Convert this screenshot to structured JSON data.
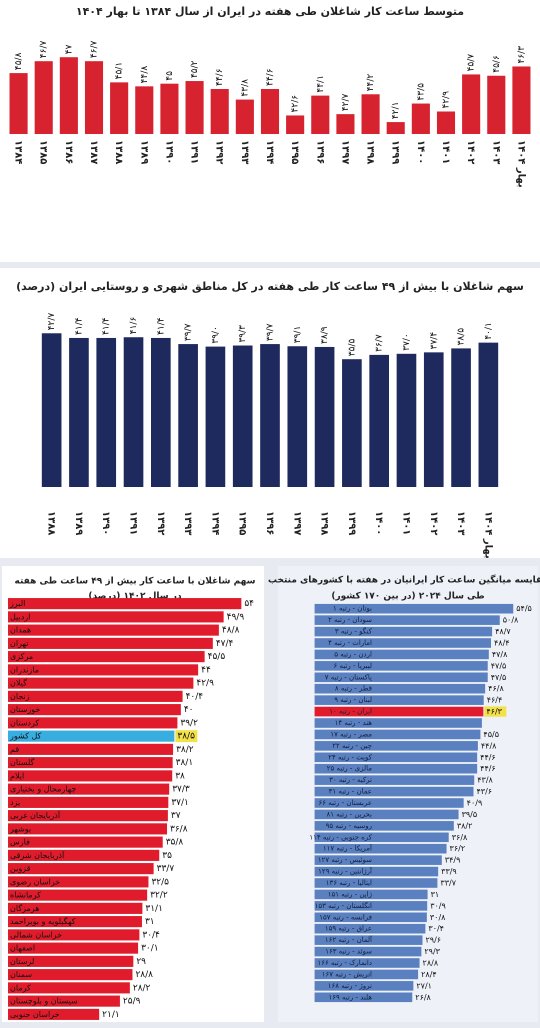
{
  "chart_data": [
    {
      "type": "bar",
      "orientation": "vertical",
      "title": "متوسط ساعت کار شاغلان طی هفته در ایران از سال ۱۳۸۴ تا بهار ۱۴۰۴",
      "categories": [
        "۱۳۸۴",
        "۱۳۸۵",
        "۱۳۸۶",
        "۱۳۸۷",
        "۱۳۸۸",
        "۱۳۸۹",
        "۱۳۹۰",
        "۱۳۹۱",
        "۱۳۹۲",
        "۱۳۹۳",
        "۱۳۹۴",
        "۱۳۹۵",
        "۱۳۹۶",
        "۱۳۹۷",
        "۱۳۹۸",
        "۱۳۹۹",
        "۱۴۰۰",
        "۱۴۰۱",
        "۱۴۰۲",
        "۱۴۰۳",
        "بهار ۱۴۰۴"
      ],
      "values": [
        45.8,
        46.7,
        47,
        46.7,
        45.1,
        44.8,
        45,
        45.2,
        44.6,
        43.8,
        44.6,
        42.6,
        44.1,
        42.7,
        44.2,
        42.1,
        43.5,
        42.9,
        45.7,
        45.6,
        46.3
      ],
      "value_labels": [
        "۴۵/۸",
        "۴۶/۷",
        "۴۷",
        "۴۶/۷",
        "۴۵/۱",
        "۴۴/۸",
        "۴۵",
        "۴۵/۲",
        "۴۴/۶",
        "۴۳/۸",
        "۴۴/۶",
        "۴۲/۶",
        "۴۴/۱",
        "۴۲/۷",
        "۴۴/۲",
        "۴۲/۱",
        "۴۳/۵",
        "۴۲/۹",
        "۴۵/۷",
        "۴۵/۶",
        "۴۶/۳"
      ],
      "color": "#d7232f",
      "ylim": [
        41.2,
        48.3
      ]
    },
    {
      "type": "bar",
      "orientation": "vertical",
      "title": "سهم شاغلان با بیش از ۴۹ ساعت کار طی هفته در کل مناطق شهری و روستایی ایران (درصد)",
      "categories": [
        "۱۳۸۸",
        "۱۳۸۹",
        "۱۳۹۰",
        "۱۳۹۱",
        "۱۳۹۲",
        "۱۳۹۳",
        "۱۳۹۴",
        "۱۳۹۵",
        "۱۳۹۶",
        "۱۳۹۷",
        "۱۳۹۸",
        "۱۳۹۹",
        "۱۴۰۰",
        "۱۴۰۱",
        "۱۴۰۲",
        "۱۴۰۳",
        "بهار ۱۴۰۴"
      ],
      "values": [
        42.7,
        41.4,
        41.4,
        41.6,
        41.4,
        39.7,
        39.0,
        39.3,
        39.7,
        39.1,
        38.9,
        35.5,
        36.7,
        37.0,
        37.4,
        38.5,
        40.1
      ],
      "value_labels": [
        "۴۲/۷",
        "۴۱/۴",
        "۴۱/۴",
        "۴۱/۶",
        "۴۱/۴",
        "۳۹/۷",
        "۳۹/۰",
        "۳۹/۳",
        "۳۹/۷",
        "۳۹/۱",
        "۳۸/۹",
        "۳۵/۵",
        "۳۶/۷",
        "۳۷/۰",
        "۳۷/۴",
        "۳۸/۵",
        "۴۰/۱"
      ],
      "color": "#1e2a5e",
      "ylim": [
        -5,
        45
      ]
    },
    {
      "type": "bar",
      "orientation": "horizontal",
      "title": "سهم شاغلان با ساعت کار بیش از ۴۹ ساعت طی هفته",
      "subtitle": "در سال ۱۴۰۲ (درصد)",
      "categories": [
        "البرز",
        "اردبیل",
        "همدان",
        "تهران",
        "مرکزی",
        "مازندران",
        "گیلان",
        "زنجان",
        "خوزستان",
        "کردستان",
        "کل کشور",
        "قم",
        "گلستان",
        "ایلام",
        "چهارمحال و بختیاری",
        "یزد",
        "آذربایجان غربی",
        "بوشهر",
        "فارس",
        "آذربایجان شرقی",
        "قزوین",
        "خراسان رضوی",
        "کرمانشاه",
        "هرمزگان",
        "کهگیلویه و بویراحمد",
        "خراسان شمالی",
        "اصفهان",
        "لرستان",
        "سمنان",
        "کرمان",
        "سیستان و بلوچستان",
        "خراسان جنوبی"
      ],
      "values": [
        54,
        49.9,
        48.8,
        47.4,
        45.5,
        44,
        42.9,
        40.4,
        40,
        39.2,
        38.5,
        38.2,
        38.1,
        38,
        37.3,
        37.1,
        37,
        36.8,
        35.8,
        35,
        33.7,
        32.5,
        32.2,
        31.1,
        31,
        30.4,
        30.1,
        29,
        28.8,
        28.2,
        25.9,
        21.1
      ],
      "value_labels": [
        "۵۴",
        "۴۹/۹",
        "۴۸/۸",
        "۴۷/۴",
        "۴۵/۵",
        "۴۴",
        "۴۲/۹",
        "۴۰/۴",
        "۴۰",
        "۳۹/۲",
        "۳۸/۵",
        "۳۸/۲",
        "۳۸/۱",
        "۳۸",
        "۳۷/۳",
        "۳۷/۱",
        "۳۷",
        "۳۶/۸",
        "۳۵/۸",
        "۳۵",
        "۳۳/۷",
        "۳۲/۵",
        "۳۲/۲",
        "۳۱/۱",
        "۳۱",
        "۳۰/۴",
        "۳۰/۱",
        "۲۹",
        "۲۸/۸",
        "۲۸/۲",
        "۲۵/۹",
        "۲۱/۱"
      ],
      "color": "#e01c2c",
      "highlight_index": 10,
      "highlight_color": "#38aee0",
      "highlight_label_color": "#f3e14a",
      "xlim": [
        0,
        56
      ]
    },
    {
      "type": "bar",
      "orientation": "horizontal",
      "title": "مقایسه میانگین ساعت کار ایرانیان در هفته با کشورهای منتخب",
      "subtitle": "طی سال ۲۰۲۴ (در بین ۱۷۰ کشور)",
      "categories": [
        "بوتان - رتبه ۱",
        "سودان - رتبه ۲",
        "کنگو - رتبه ۳",
        "امارات - رتبه ۴",
        "اردن - رتبه ۵",
        "لیبریا - رتبه ۶",
        "پاکستان - رتبه ۷",
        "قطر - رتبه ۸",
        "لبنان - رتبه ۹",
        "ایران - رتبه ۱۰",
        "هند - رتبه ۱۴",
        "مصر - رتبه ۱۷",
        "چین - رتبه ۲۲",
        "کویت - رتبه ۲۴",
        "مالزی - رتبه ۲۵",
        "ترکیه - رتبه ۳۰",
        "عمان - رتبه ۳۱",
        "عربستان - رتبه ۶۶",
        "بحرین - رتبه ۸۱",
        "روسیه - رتبه ۹۵",
        "کره جنوبی - رتبه ۱۱۴",
        "آمریکا - رتبه ۱۱۷",
        "سوئیس - رتبه ۱۲۷",
        "آرژانتین - رتبه ۱۲۹",
        "ایتالیا - رتبه ۱۳۶",
        "ژاپن - رتبه ۱۵۱",
        "انگلستان - رتبه ۱۵۳",
        "فرانسه - رتبه ۱۵۷",
        "عراق - رتبه ۱۵۹",
        "آلمان - رتبه ۱۶۲",
        "سوئد - رتبه ۱۶۳",
        "دانمارک - رتبه ۱۶۶",
        "اتریش - رتبه ۱۶۷",
        "نروژ - رتبه ۱۶۸",
        "هلند - رتبه ۱۶۹"
      ],
      "values": [
        54.5,
        50.8,
        48.7,
        48.4,
        47.8,
        47.5,
        47.5,
        46.8,
        46.4,
        46.3,
        45.9,
        45.5,
        44.8,
        44.6,
        44.6,
        43.8,
        43.6,
        40.9,
        39.5,
        38.2,
        36.8,
        36.2,
        34.9,
        33.9,
        33.7,
        31,
        30.9,
        30.8,
        30.4,
        29.6,
        29.3,
        28.8,
        28.4,
        27.1,
        26.8
      ],
      "value_labels": [
        "۵۴/۵",
        "۵۰/۸",
        "۴۸/۷",
        "۴۸/۴",
        "۴۷/۸",
        "۴۷/۵",
        "۴۷/۵",
        "۴۶/۸",
        "۴۶/۴",
        "۴۶/۳",
        null,
        "۴۵/۵",
        "۴۴/۸",
        "۴۴/۶",
        "۴۴/۶",
        "۴۳/۸",
        "۴۳/۶",
        "۴۰/۹",
        "۳۹/۵",
        "۳۸/۲",
        "۳۶/۸",
        "۳۶/۲",
        "۳۴/۹",
        "۳۳/۹",
        "۳۳/۷",
        "۳۱",
        "۳۰/۹",
        "۳۰/۸",
        "۳۰/۴",
        "۲۹/۶",
        "۲۹/۳",
        "۲۸/۸",
        "۲۸/۴",
        "۲۷/۱",
        "۲۶/۸"
      ],
      "color": "#5b80c0",
      "highlight_index": 9,
      "highlight_color": "#e01c2c",
      "highlight_label_color": "#f3e14a",
      "xlim": [
        -4,
        58
      ]
    }
  ]
}
